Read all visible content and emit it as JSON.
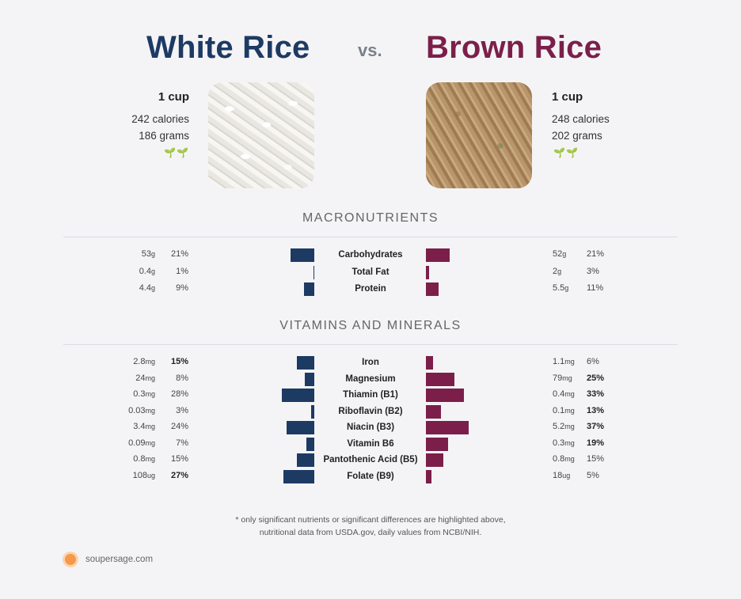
{
  "left_food": {
    "name": "White Rice",
    "serving": "1 cup",
    "calories": "242 calories",
    "grams": "186 grams",
    "color": "#1d3a63"
  },
  "right_food": {
    "name": "Brown Rice",
    "serving": "1 cup",
    "calories": "248 calories",
    "grams": "202 grams",
    "color": "#7b1f4a"
  },
  "vs_label": "vs.",
  "leaf_icons": "🌱🌱",
  "sections": {
    "macros": "MACRONUTRIENTS",
    "vitamins": "VITAMINS AND MINERALS"
  },
  "footnote": [
    "* only significant nutrients or significant differences are highlighted above,",
    "nutritional data from USDA.gov, daily values from NCBI/NIH."
  ],
  "brand": "soupersage.com",
  "chart_data": [
    {
      "type": "bar",
      "title": "MACRONUTRIENTS",
      "categories": [
        "Carbohydrates",
        "Total Fat",
        "Protein"
      ],
      "series": [
        {
          "name": "White Rice",
          "values": [
            21,
            1,
            9
          ],
          "amounts": [
            [
              "53",
              "g"
            ],
            [
              "0.4",
              "g"
            ],
            [
              "4.4",
              "g"
            ]
          ],
          "pct_labels": [
            "21%",
            "1%",
            "9%"
          ],
          "bold": [
            false,
            false,
            false
          ]
        },
        {
          "name": "Brown Rice",
          "values": [
            21,
            3,
            11
          ],
          "amounts": [
            [
              "52",
              "g"
            ],
            [
              "2",
              "g"
            ],
            [
              "5.5",
              "g"
            ]
          ],
          "pct_labels": [
            "21%",
            "3%",
            "11%"
          ],
          "bold": [
            false,
            false,
            false
          ]
        }
      ]
    },
    {
      "type": "bar",
      "title": "VITAMINS AND MINERALS",
      "categories": [
        "Iron",
        "Magnesium",
        "Thiamin (B1)",
        "Riboflavin (B2)",
        "Niacin (B3)",
        "Vitamin B6",
        "Pantothenic Acid (B5)",
        "Folate (B9)"
      ],
      "series": [
        {
          "name": "White Rice",
          "values": [
            15,
            8,
            28,
            3,
            24,
            7,
            15,
            27
          ],
          "amounts": [
            [
              "2.8",
              "mg"
            ],
            [
              "24",
              "mg"
            ],
            [
              "0.3",
              "mg"
            ],
            [
              "0.03",
              "mg"
            ],
            [
              "3.4",
              "mg"
            ],
            [
              "0.09",
              "mg"
            ],
            [
              "0.8",
              "mg"
            ],
            [
              "108",
              "ug"
            ]
          ],
          "pct_labels": [
            "15%",
            "8%",
            "28%",
            "3%",
            "24%",
            "7%",
            "15%",
            "27%"
          ],
          "bold": [
            true,
            false,
            false,
            false,
            false,
            false,
            false,
            true
          ]
        },
        {
          "name": "Brown Rice",
          "values": [
            6,
            25,
            33,
            13,
            37,
            19,
            15,
            5
          ],
          "amounts": [
            [
              "1.1",
              "mg"
            ],
            [
              "79",
              "mg"
            ],
            [
              "0.4",
              "mg"
            ],
            [
              "0.1",
              "mg"
            ],
            [
              "5.2",
              "mg"
            ],
            [
              "0.3",
              "mg"
            ],
            [
              "0.8",
              "mg"
            ],
            [
              "18",
              "ug"
            ]
          ],
          "pct_labels": [
            "6%",
            "25%",
            "33%",
            "13%",
            "37%",
            "19%",
            "15%",
            "5%"
          ],
          "bold": [
            false,
            true,
            true,
            true,
            true,
            true,
            false,
            false
          ]
        }
      ]
    }
  ]
}
